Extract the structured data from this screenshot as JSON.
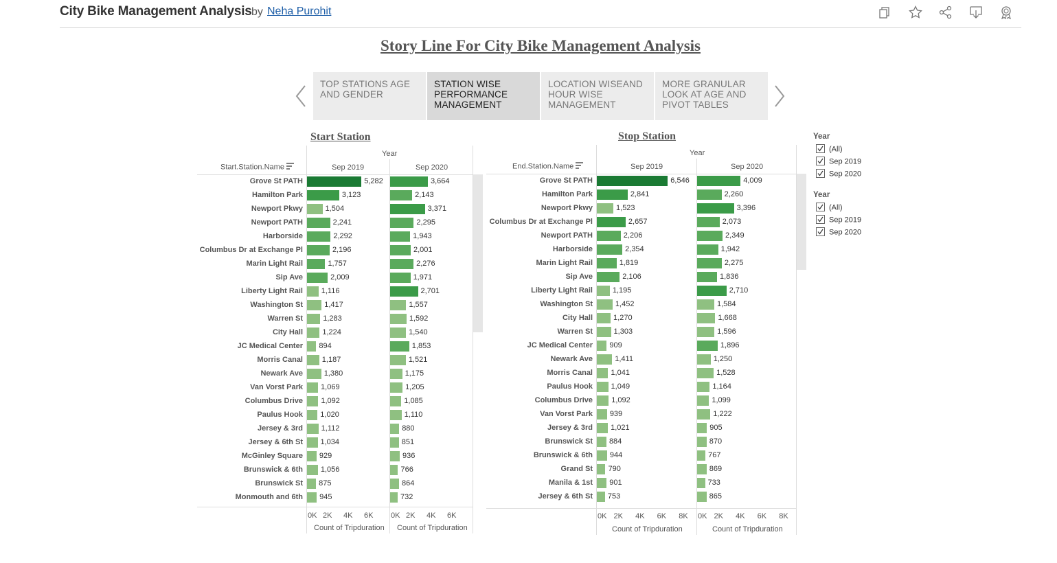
{
  "header": {
    "title": "City Bike Management Analysis",
    "by": "by",
    "author": "Neha Purohit",
    "icons": [
      "copy-icon",
      "favorite-star-icon",
      "share-icon",
      "download-icon",
      "badge-icon"
    ]
  },
  "story": {
    "title": "Story Line For City Bike Management Analysis",
    "tabs": [
      {
        "label": "TOP STATIONS AGE AND GENDER"
      },
      {
        "label": "STATION WISE PERFORMANCE MANAGEMENT",
        "active": true
      },
      {
        "label": "LOCATION WISEAND HOUR WISE MANAGEMENT"
      },
      {
        "label": "MORE GRANULAR LOOK AT AGE AND PIVOT TABLES"
      }
    ]
  },
  "filters": [
    {
      "title": "Year",
      "items": [
        "(All)",
        "Sep 2019",
        "Sep 2020"
      ]
    },
    {
      "title": "Year",
      "items": [
        "(All)",
        "Sep 2019",
        "Sep 2020"
      ]
    }
  ],
  "colors": {
    "dark": "#1a7a33",
    "mid": "#3b9b48",
    "mid2": "#5aaa5c",
    "light": "#8fc081"
  },
  "chart_data": [
    {
      "type": "bar",
      "title": "Start Station",
      "row_header": "Start.Station.Name",
      "column_header": "Year",
      "xlabel": "Count of Tripduration",
      "xlim": [
        0,
        7000
      ],
      "ticks": [
        "0K",
        "2K",
        "4K",
        "6K"
      ],
      "categories": [
        "Grove St PATH",
        "Hamilton Park",
        "Newport Pkwy",
        "Newport PATH",
        "Harborside",
        "Columbus Dr at Exchange Pl",
        "Marin Light Rail",
        "Sip Ave",
        "Liberty Light Rail",
        "Washington St",
        "Warren St",
        "City Hall",
        "JC Medical Center",
        "Morris Canal",
        "Newark Ave",
        "Van Vorst Park",
        "Columbus Drive",
        "Paulus Hook",
        "Jersey & 3rd",
        "Jersey & 6th St",
        "McGinley Square",
        "Brunswick & 6th",
        "Brunswick St",
        "Monmouth and 6th"
      ],
      "series": [
        {
          "name": "Sep 2019",
          "values": [
            5282,
            3123,
            1504,
            2241,
            2292,
            2196,
            1757,
            2009,
            1116,
            1417,
            1283,
            1224,
            894,
            1187,
            1380,
            1069,
            1092,
            1020,
            1112,
            1034,
            929,
            1056,
            875,
            945
          ],
          "labels": [
            "5,282",
            "3,123",
            "1,504",
            "2,241",
            "2,292",
            "2,196",
            "1,757",
            "2,009",
            "1,116",
            "1,417",
            "1,283",
            "1,224",
            "894",
            "1,187",
            "1,380",
            "1,069",
            "1,092",
            "1,020",
            "1,112",
            "1,034",
            "929",
            "1,056",
            "875",
            "945"
          ]
        },
        {
          "name": "Sep 2020",
          "values": [
            3664,
            2143,
            3371,
            2295,
            1943,
            2001,
            2276,
            1971,
            2701,
            1557,
            1592,
            1540,
            1853,
            1521,
            1175,
            1205,
            1085,
            1110,
            880,
            851,
            936,
            766,
            864,
            732
          ],
          "labels": [
            "3,664",
            "2,143",
            "3,371",
            "2,295",
            "1,943",
            "2,001",
            "2,276",
            "1,971",
            "2,701",
            "1,557",
            "1,592",
            "1,540",
            "1,853",
            "1,521",
            "1,175",
            "1,205",
            "1,085",
            "1,110",
            "880",
            "851",
            "936",
            "766",
            "864",
            "732"
          ]
        }
      ]
    },
    {
      "type": "bar",
      "title": "Stop Station",
      "row_header": "End.Station.Name",
      "column_header": "Year",
      "xlabel": "Count of Tripduration",
      "xlim": [
        0,
        9000
      ],
      "ticks": [
        "0K",
        "2K",
        "4K",
        "6K",
        "8K"
      ],
      "categories": [
        "Grove St PATH",
        "Hamilton Park",
        "Newport Pkwy",
        "Columbus Dr at Exchange Pl",
        "Newport PATH",
        "Harborside",
        "Marin Light Rail",
        "Sip Ave",
        "Liberty Light Rail",
        "Washington St",
        "City Hall",
        "Warren St",
        "JC Medical Center",
        "Newark Ave",
        "Morris Canal",
        "Paulus Hook",
        "Columbus Drive",
        "Van Vorst Park",
        "Jersey & 3rd",
        "Brunswick St",
        "Brunswick & 6th",
        "Grand St",
        "Manila & 1st",
        "Jersey & 6th St"
      ],
      "series": [
        {
          "name": "Sep 2019",
          "values": [
            6546,
            2841,
            1523,
            2657,
            2206,
            2354,
            1819,
            2106,
            1195,
            1452,
            1270,
            1303,
            909,
            1411,
            1041,
            1049,
            1092,
            939,
            1021,
            884,
            944,
            790,
            901,
            753
          ],
          "labels": [
            "6,546",
            "2,841",
            "1,523",
            "2,657",
            "2,206",
            "2,354",
            "1,819",
            "2,106",
            "1,195",
            "1,452",
            "1,270",
            "1,303",
            "909",
            "1,411",
            "1,041",
            "1,049",
            "1,092",
            "939",
            "1,021",
            "884",
            "944",
            "790",
            "901",
            "753"
          ]
        },
        {
          "name": "Sep 2020",
          "values": [
            4009,
            2260,
            3396,
            2073,
            2349,
            1942,
            2275,
            1836,
            2710,
            1584,
            1668,
            1596,
            1896,
            1250,
            1528,
            1164,
            1099,
            1222,
            905,
            870,
            767,
            869,
            733,
            865
          ],
          "labels": [
            "4,009",
            "2,260",
            "3,396",
            "2,073",
            "2,349",
            "1,942",
            "2,275",
            "1,836",
            "2,710",
            "1,584",
            "1,668",
            "1,596",
            "1,896",
            "1,250",
            "1,528",
            "1,164",
            "1,099",
            "1,222",
            "905",
            "870",
            "767",
            "869",
            "733",
            "865"
          ]
        }
      ]
    }
  ]
}
